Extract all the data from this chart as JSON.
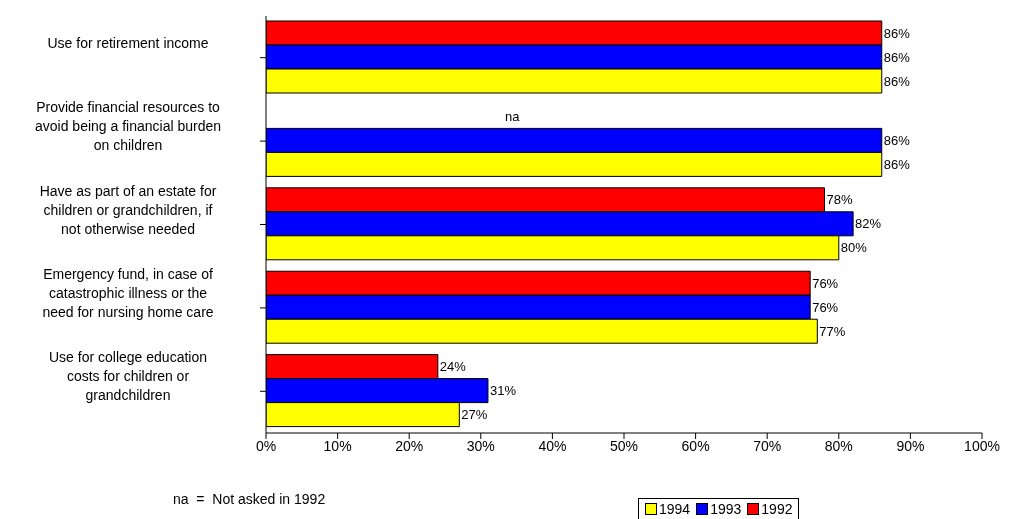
{
  "chart_data": {
    "type": "bar",
    "orientation": "horizontal",
    "categories": [
      "Use for retirement income",
      "Provide financial resources to avoid being a financial burden on children",
      "Have as part of an estate for children or grandchildren, if not otherwise needed",
      "Emergency fund, in case of catastrophic illness or the need for nursing home care",
      "Use for college education costs for children or grandchildren"
    ],
    "series": [
      {
        "name": "1992",
        "color": "#ff0000",
        "values": [
          86,
          null,
          78,
          76,
          24
        ],
        "value_labels": [
          "86%",
          "na",
          "78%",
          "76%",
          "24%"
        ]
      },
      {
        "name": "1993",
        "color": "#0000ff",
        "values": [
          86,
          86,
          82,
          76,
          31
        ],
        "value_labels": [
          "86%",
          "86%",
          "82%",
          "76%",
          "31%"
        ]
      },
      {
        "name": "1994",
        "color": "#ffff00",
        "values": [
          86,
          86,
          80,
          77,
          27
        ],
        "value_labels": [
          "86%",
          "86%",
          "80%",
          "77%",
          "27%"
        ]
      }
    ],
    "xlim": [
      0,
      100
    ],
    "xticks": [
      {
        "value": 0,
        "label": "0%"
      },
      {
        "value": 10,
        "label": "10%"
      },
      {
        "value": 20,
        "label": "20%"
      },
      {
        "value": 30,
        "label": "30%"
      },
      {
        "value": 40,
        "label": "40%"
      },
      {
        "value": 50,
        "label": "50%"
      },
      {
        "value": 60,
        "label": "60%"
      },
      {
        "value": 70,
        "label": "70%"
      },
      {
        "value": 80,
        "label": "80%"
      },
      {
        "value": 90,
        "label": "90%"
      },
      {
        "value": 100,
        "label": "100%"
      }
    ],
    "legend": "bottom right",
    "annotations": [
      "na  =  Not asked in 1992"
    ]
  }
}
